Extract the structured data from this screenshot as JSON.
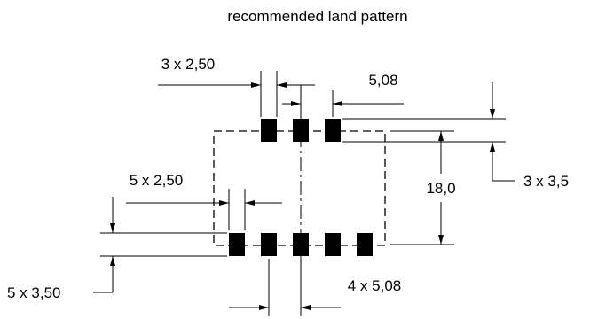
{
  "title": "recommended land pattern",
  "dimensions": {
    "top_pad_width": "3 x 2,50",
    "top_pitch": "5,08",
    "top_pad_height": "3 x 3,5",
    "row_distance": "18,0",
    "bottom_pad_width": "5 x 2,50",
    "bottom_pad_height": "5 x 3,50",
    "bottom_pitch": "4 x 5,08"
  },
  "pads": {
    "top_row_count": 3,
    "bottom_row_count": 5
  }
}
